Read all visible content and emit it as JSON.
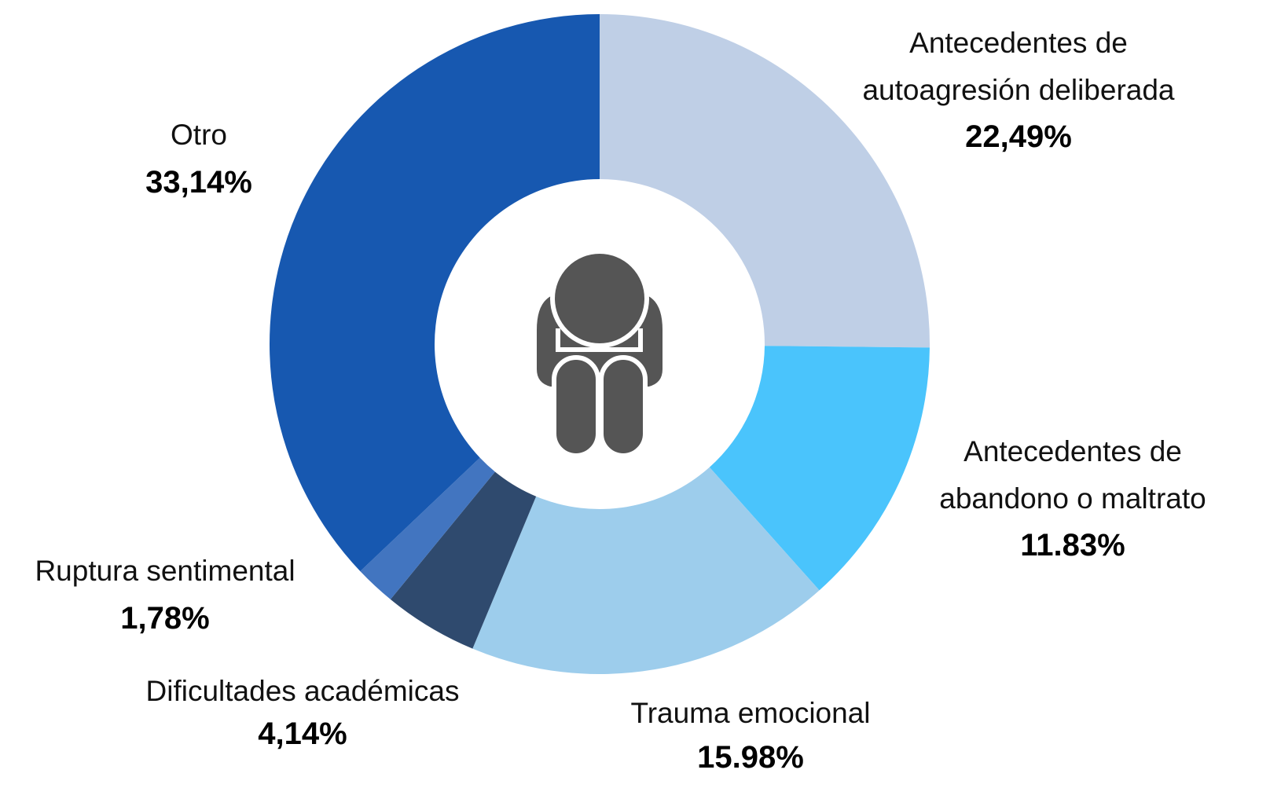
{
  "chart_data": {
    "type": "donut",
    "categories": [
      "Antecedentes de autoagresión deliberada",
      "Antecedentes de abandono o maltrato",
      "Trauma emocional",
      "Dificultades académicas",
      "Ruptura sentimental",
      "Otro"
    ],
    "values": [
      22.49,
      11.83,
      15.98,
      4.14,
      1.78,
      33.14
    ],
    "value_labels": [
      "22,49%",
      "11.83%",
      "15.98%",
      "4,14%",
      "1,78%",
      "33,14%"
    ],
    "colors": [
      "#bfcfe6",
      "#4ac4fc",
      "#9dcdec",
      "#2f4a6e",
      "#4275c0",
      "#1758b0"
    ]
  }
}
